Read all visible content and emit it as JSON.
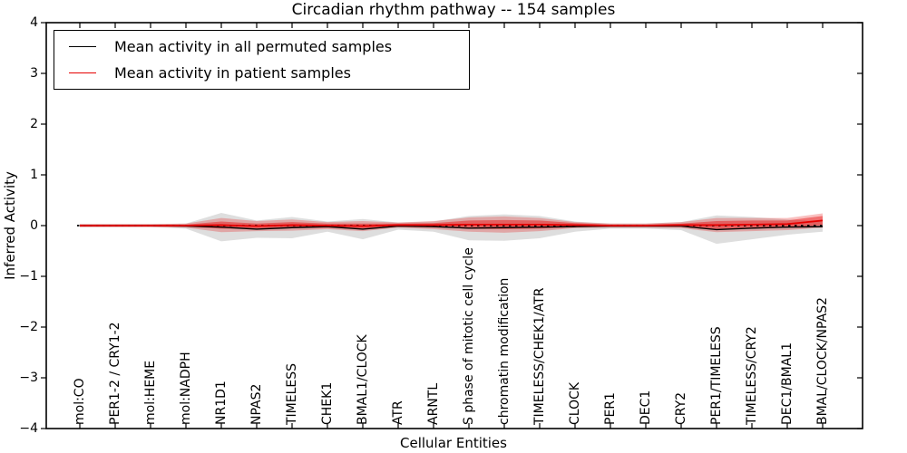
{
  "chart_data": {
    "type": "line",
    "title": "Circadian rhythm pathway -- 154 samples",
    "xlabel": "Cellular Entities",
    "ylabel": "Inferred Activity",
    "ylim": [
      -4,
      4
    ],
    "yticks": [
      -4,
      -3,
      -2,
      -1,
      0,
      1,
      2,
      3,
      4
    ],
    "grid": false,
    "legend_position": "upper left",
    "categories": [
      "mol:CO",
      "PER1-2 / CRY1-2",
      "mol:HEME",
      "mol:NADPH",
      "NR1D1",
      "NPAS2",
      "TIMELESS",
      "CHEK1",
      "BMAL1/CLOCK",
      "ATR",
      "ARNTL",
      "S phase of mitotic cell cycle",
      "chromatin modification",
      "TIMELESS/CHEK1/ATR",
      "CLOCK",
      "PER1",
      "DEC1",
      "CRY2",
      "PER1/TIMELESS",
      "TIMELESS/CRY2",
      "DEC1/BMAL1",
      "BMAL/CLOCK/NPAS2"
    ],
    "series": [
      {
        "name": "Mean activity in all permuted samples",
        "color": "#000000",
        "values": [
          0,
          0,
          0,
          -0.01,
          -0.03,
          -0.07,
          -0.04,
          -0.02,
          -0.07,
          -0.01,
          -0.02,
          -0.05,
          -0.04,
          -0.03,
          -0.02,
          -0.01,
          -0.01,
          -0.01,
          -0.08,
          -0.05,
          -0.03,
          -0.02
        ]
      },
      {
        "name": "Mean activity in patient samples",
        "color": "#e60000",
        "values": [
          0,
          0,
          0,
          0,
          0.01,
          -0.01,
          0.01,
          0,
          -0.01,
          0.01,
          0.01,
          0.02,
          0.02,
          0.02,
          0.01,
          0,
          0,
          0.01,
          0.01,
          0.02,
          0.03,
          0.1
        ]
      }
    ],
    "bands": [
      {
        "name": "permuted-range",
        "center_series": 0,
        "color": "#000000",
        "opacity": 0.13,
        "halfwidths": [
          0.03,
          0.03,
          0.03,
          0.05,
          0.28,
          0.17,
          0.21,
          0.1,
          0.2,
          0.07,
          0.1,
          0.24,
          0.26,
          0.22,
          0.1,
          0.05,
          0.05,
          0.08,
          0.28,
          0.22,
          0.15,
          0.1
        ]
      },
      {
        "name": "patient-outer-range",
        "center_series": 1,
        "color": "#e60000",
        "opacity": 0.25,
        "halfwidths": [
          0.03,
          0.03,
          0.03,
          0.04,
          0.14,
          0.1,
          0.11,
          0.07,
          0.1,
          0.05,
          0.08,
          0.14,
          0.16,
          0.13,
          0.06,
          0.04,
          0.04,
          0.06,
          0.14,
          0.13,
          0.12,
          0.14
        ]
      },
      {
        "name": "patient-inner-range",
        "center_series": 1,
        "color": "#e60000",
        "opacity": 0.42,
        "halfwidths": [
          0.02,
          0.02,
          0.02,
          0.02,
          0.07,
          0.05,
          0.06,
          0.04,
          0.05,
          0.03,
          0.04,
          0.08,
          0.09,
          0.08,
          0.04,
          0.02,
          0.02,
          0.03,
          0.08,
          0.08,
          0.07,
          0.09
        ]
      }
    ],
    "baseline": {
      "value": 0,
      "style": "dashed",
      "color": "#000000"
    },
    "frame_color": "#000000"
  }
}
